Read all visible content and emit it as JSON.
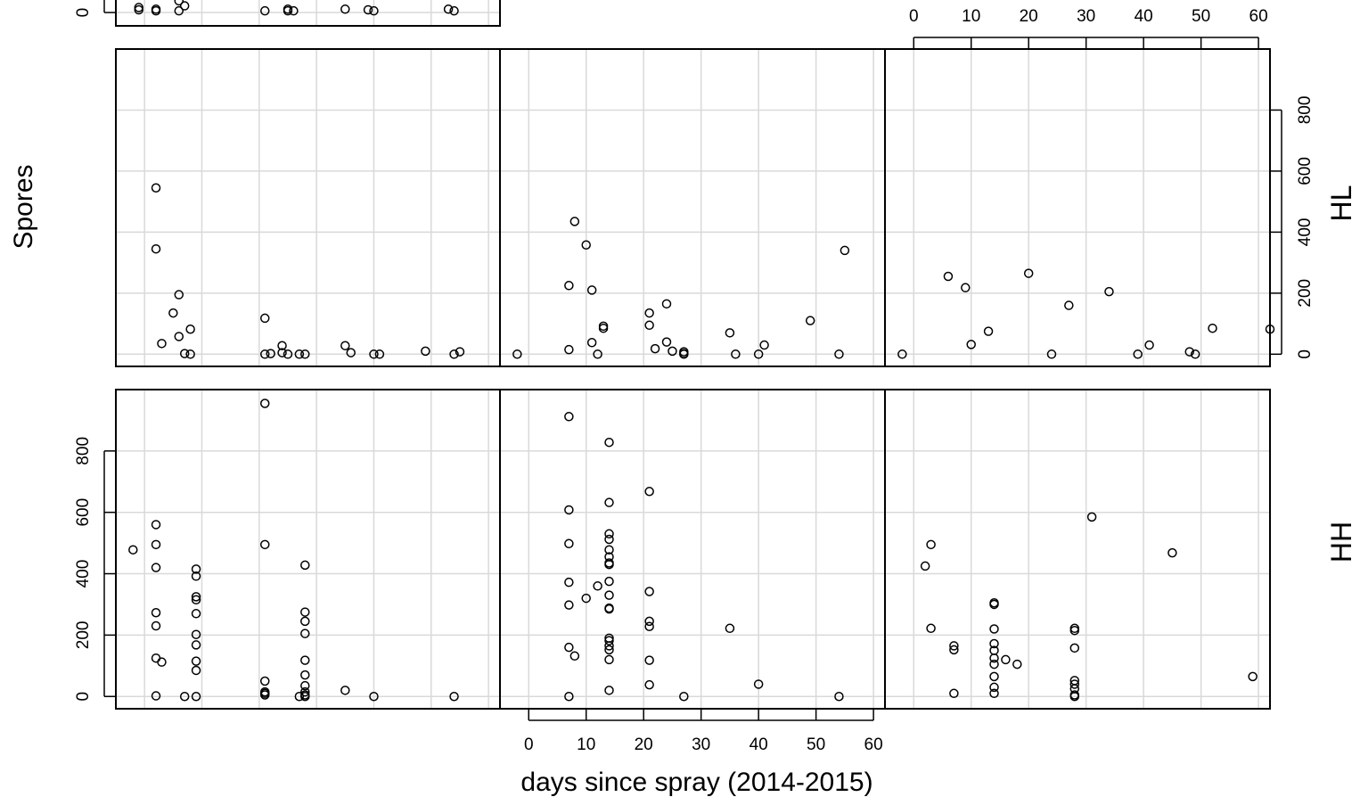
{
  "chart_data": {
    "type": "scatter",
    "xlabel": "days since spray (2014-2015)",
    "ylabel": "Spores",
    "xlim": [
      -5,
      62
    ],
    "ylim": [
      -40,
      1000
    ],
    "x_ticks": [
      0,
      10,
      20,
      30,
      40,
      50,
      60
    ],
    "y_ticks": [
      0,
      200,
      400,
      600,
      800
    ],
    "grid": true,
    "point_marker": "open-circle",
    "panels": [
      {
        "row": "HH",
        "col": 1,
        "points": [
          [
            -2,
            478
          ],
          [
            2,
            560
          ],
          [
            2,
            495
          ],
          [
            2,
            420
          ],
          [
            2,
            273
          ],
          [
            2,
            230
          ],
          [
            2,
            125
          ],
          [
            3,
            112
          ],
          [
            2,
            2
          ],
          [
            7,
            0
          ],
          [
            9,
            415
          ],
          [
            9,
            392
          ],
          [
            9,
            325
          ],
          [
            9,
            315
          ],
          [
            9,
            270
          ],
          [
            9,
            202
          ],
          [
            9,
            168
          ],
          [
            9,
            115
          ],
          [
            9,
            85
          ],
          [
            9,
            0
          ],
          [
            21,
            955
          ],
          [
            21,
            495
          ],
          [
            21,
            50
          ],
          [
            21,
            15
          ],
          [
            21,
            10
          ],
          [
            21,
            5
          ],
          [
            28,
            428
          ],
          [
            28,
            275
          ],
          [
            28,
            245
          ],
          [
            28,
            205
          ],
          [
            28,
            118
          ],
          [
            28,
            70
          ],
          [
            28,
            35
          ],
          [
            28,
            15
          ],
          [
            28,
            5
          ],
          [
            27,
            0
          ],
          [
            28,
            0
          ],
          [
            35,
            20
          ],
          [
            40,
            0
          ],
          [
            54,
            0
          ]
        ]
      },
      {
        "row": "HH",
        "col": 2,
        "points": [
          [
            7,
            912
          ],
          [
            7,
            608
          ],
          [
            7,
            498
          ],
          [
            7,
            372
          ],
          [
            7,
            298
          ],
          [
            7,
            160
          ],
          [
            8,
            132
          ],
          [
            7,
            0
          ],
          [
            10,
            320
          ],
          [
            12,
            360
          ],
          [
            14,
            828
          ],
          [
            14,
            632
          ],
          [
            14,
            530
          ],
          [
            14,
            512
          ],
          [
            14,
            478
          ],
          [
            14,
            455
          ],
          [
            14,
            435
          ],
          [
            14,
            430
          ],
          [
            14,
            375
          ],
          [
            14,
            330
          ],
          [
            14,
            288
          ],
          [
            14,
            285
          ],
          [
            14,
            190
          ],
          [
            14,
            182
          ],
          [
            14,
            165
          ],
          [
            14,
            152
          ],
          [
            14,
            120
          ],
          [
            14,
            20
          ],
          [
            21,
            668
          ],
          [
            21,
            342
          ],
          [
            21,
            245
          ],
          [
            21,
            228
          ],
          [
            21,
            118
          ],
          [
            21,
            38
          ],
          [
            27,
            0
          ],
          [
            35,
            222
          ],
          [
            40,
            40
          ],
          [
            54,
            0
          ]
        ]
      },
      {
        "row": "HH",
        "col": 3,
        "points": [
          [
            2,
            425
          ],
          [
            3,
            495
          ],
          [
            3,
            222
          ],
          [
            7,
            165
          ],
          [
            7,
            152
          ],
          [
            7,
            10
          ],
          [
            14,
            305
          ],
          [
            14,
            300
          ],
          [
            14,
            220
          ],
          [
            14,
            172
          ],
          [
            14,
            150
          ],
          [
            14,
            125
          ],
          [
            14,
            105
          ],
          [
            14,
            65
          ],
          [
            14,
            30
          ],
          [
            14,
            10
          ],
          [
            16,
            120
          ],
          [
            18,
            105
          ],
          [
            28,
            222
          ],
          [
            28,
            215
          ],
          [
            28,
            158
          ],
          [
            28,
            52
          ],
          [
            28,
            40
          ],
          [
            28,
            25
          ],
          [
            28,
            5
          ],
          [
            28,
            0
          ],
          [
            31,
            585
          ],
          [
            45,
            468
          ],
          [
            59,
            65
          ]
        ]
      },
      {
        "row": "HL",
        "col": 1,
        "points": [
          [
            2,
            545
          ],
          [
            2,
            345
          ],
          [
            3,
            35
          ],
          [
            5,
            135
          ],
          [
            6,
            195
          ],
          [
            6,
            58
          ],
          [
            7,
            2
          ],
          [
            8,
            82
          ],
          [
            8,
            0
          ],
          [
            21,
            118
          ],
          [
            21,
            0
          ],
          [
            22,
            2
          ],
          [
            24,
            28
          ],
          [
            24,
            5
          ],
          [
            25,
            0
          ],
          [
            27,
            0
          ],
          [
            28,
            0
          ],
          [
            35,
            28
          ],
          [
            36,
            5
          ],
          [
            40,
            0
          ],
          [
            41,
            0
          ],
          [
            49,
            10
          ],
          [
            54,
            0
          ],
          [
            55,
            8
          ]
        ]
      },
      {
        "row": "HL",
        "col": 2,
        "points": [
          [
            -2,
            0
          ],
          [
            7,
            225
          ],
          [
            7,
            15
          ],
          [
            8,
            435
          ],
          [
            10,
            358
          ],
          [
            11,
            38
          ],
          [
            11,
            210
          ],
          [
            12,
            0
          ],
          [
            13,
            92
          ],
          [
            13,
            85
          ],
          [
            21,
            135
          ],
          [
            21,
            95
          ],
          [
            22,
            18
          ],
          [
            24,
            165
          ],
          [
            24,
            40
          ],
          [
            25,
            10
          ],
          [
            27,
            8
          ],
          [
            27,
            2
          ],
          [
            27,
            0
          ],
          [
            35,
            70
          ],
          [
            36,
            0
          ],
          [
            40,
            0
          ],
          [
            41,
            30
          ],
          [
            49,
            110
          ],
          [
            54,
            0
          ],
          [
            55,
            340
          ]
        ]
      },
      {
        "row": "HL",
        "col": 3,
        "points": [
          [
            -2,
            0
          ],
          [
            6,
            255
          ],
          [
            9,
            218
          ],
          [
            10,
            32
          ],
          [
            13,
            75
          ],
          [
            20,
            265
          ],
          [
            24,
            0
          ],
          [
            27,
            160
          ],
          [
            34,
            205
          ],
          [
            39,
            0
          ],
          [
            41,
            30
          ],
          [
            48,
            8
          ],
          [
            49,
            0
          ],
          [
            52,
            85
          ],
          [
            62,
            82
          ]
        ]
      },
      {
        "row": "top",
        "col": 1,
        "points": [
          [
            -1,
            15
          ],
          [
            -1,
            8
          ],
          [
            2,
            10
          ],
          [
            2,
            5
          ],
          [
            6,
            35
          ],
          [
            6,
            5
          ],
          [
            7,
            20
          ],
          [
            21,
            5
          ],
          [
            25,
            10
          ],
          [
            25,
            5
          ],
          [
            26,
            5
          ],
          [
            29,
            50
          ],
          [
            35,
            10
          ],
          [
            39,
            8
          ],
          [
            40,
            5
          ],
          [
            53,
            10
          ],
          [
            54,
            5
          ]
        ]
      }
    ],
    "strip_labels": [
      "HL",
      "HH"
    ]
  }
}
